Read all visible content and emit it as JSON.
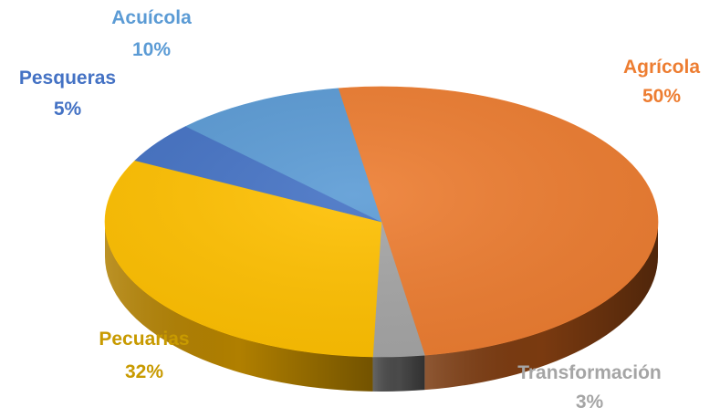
{
  "chart_data": {
    "type": "pie",
    "title": "",
    "legend": "none",
    "slices": [
      {
        "label": "Agrícola",
        "value": 50,
        "value_label": "50%",
        "color": "#ED7D31",
        "side_color": "#7A3A10",
        "label_color": "#ED7D31"
      },
      {
        "label": "Transformación",
        "value": 3,
        "value_label": "3%",
        "color": "#A5A5A5",
        "side_color": "#4A4A4A",
        "label_color": "#A5A5A5"
      },
      {
        "label": "Pecuarias",
        "value": 32,
        "value_label": "32%",
        "color": "#FFC000",
        "side_color": "#B07F00",
        "label_color": "#C89A00"
      },
      {
        "label": "Pesqueras",
        "value": 5,
        "value_label": "5%",
        "color": "#4472C4",
        "side_color": "#2A4A85",
        "label_color": "#4472C4"
      },
      {
        "label": "Acuícola",
        "value": 10,
        "value_label": "10%",
        "color": "#5B9BD5",
        "side_color": "#3A6A9A",
        "label_color": "#5B9BD5"
      }
    ]
  }
}
